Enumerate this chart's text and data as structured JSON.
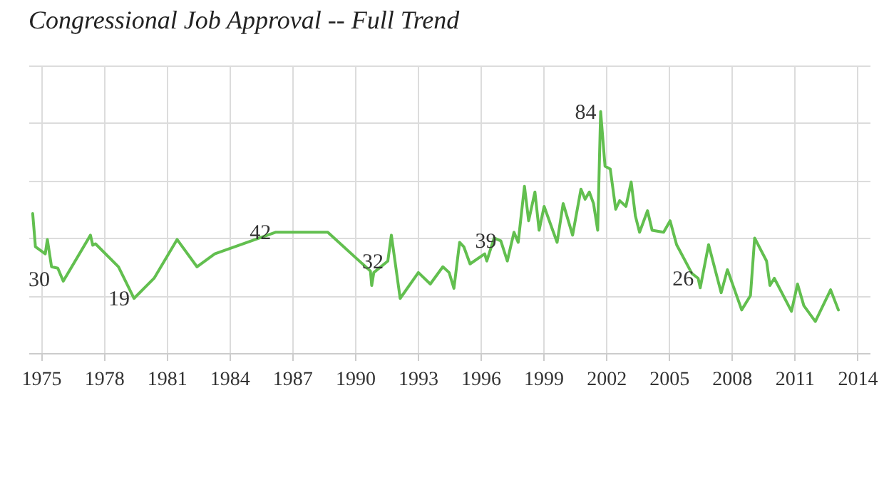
{
  "chart_data": {
    "type": "line",
    "title": "Congressional Job Approval -- Full Trend",
    "x": [
      1974.6,
      1974.73,
      1975.2,
      1975.3,
      1975.5,
      1975.8,
      1976.06,
      1977.36,
      1977.47,
      1977.6,
      1978.7,
      1979.44,
      1980.4,
      1981.5,
      1982.45,
      1983.3,
      1986.2,
      1988.7,
      1990.74,
      1990.8,
      1990.9,
      1991.57,
      1991.74,
      1992.16,
      1993.03,
      1993.6,
      1994.2,
      1994.5,
      1994.73,
      1995.0,
      1995.2,
      1995.5,
      1996.2,
      1996.3,
      1996.65,
      1996.97,
      1997.28,
      1997.6,
      1997.8,
      1998.1,
      1998.3,
      1998.6,
      1998.8,
      1999.04,
      1999.45,
      1999.66,
      1999.95,
      2000.4,
      2000.8,
      2001.0,
      2001.2,
      2001.4,
      2001.6,
      2001.74,
      2001.95,
      2002.2,
      2002.46,
      2002.65,
      2002.95,
      2003.2,
      2003.4,
      2003.6,
      2003.98,
      2004.2,
      2004.75,
      2005.06,
      2005.37,
      2006.1,
      2006.4,
      2006.5,
      2006.9,
      2007.5,
      2007.8,
      2008.48,
      2008.9,
      2009.1,
      2009.67,
      2009.83,
      2010.04,
      2010.86,
      2011.15,
      2011.45,
      2012.0,
      2012.73,
      2013.1
    ],
    "series": [
      {
        "color": "#62bf4f",
        "value_labels": [
          null,
          null,
          null,
          null,
          null,
          null,
          null,
          null,
          null,
          null,
          null,
          "19",
          null,
          null,
          null,
          null,
          "42",
          null,
          null,
          null,
          null,
          "32",
          null,
          null,
          null,
          null,
          null,
          null,
          null,
          null,
          null,
          null,
          null,
          null,
          null,
          "39",
          null,
          null,
          null,
          null,
          null,
          null,
          null,
          null,
          null,
          null,
          null,
          null,
          null,
          null,
          null,
          null,
          null,
          "84",
          null,
          null,
          null,
          null,
          null,
          null,
          null,
          null,
          null,
          null,
          null,
          null,
          null,
          null,
          "26",
          null,
          null,
          null,
          null,
          null,
          null,
          null,
          null,
          null,
          null,
          null,
          null,
          null,
          null,
          null,
          null
        ],
        "values": [
          48.5,
          37,
          34.5,
          39.5,
          30,
          29.5,
          25,
          41,
          37.5,
          38,
          30,
          19,
          26,
          39.5,
          30,
          34.5,
          42,
          42,
          28.5,
          23.5,
          28,
          32,
          41,
          19,
          28,
          24,
          30,
          28,
          22.5,
          38.5,
          37,
          31,
          34.5,
          32,
          40,
          39,
          32,
          42,
          38.5,
          58,
          46,
          56,
          42.7,
          51,
          42.7,
          38.5,
          52,
          41,
          57,
          53.5,
          56,
          52,
          42.7,
          84,
          65,
          64,
          50,
          53,
          51,
          59.5,
          47.7,
          42,
          49.5,
          42.7,
          42,
          46,
          37.7,
          27.7,
          26,
          22.7,
          37.7,
          21,
          29,
          15,
          20,
          40,
          32,
          23.5,
          26,
          14.5,
          24,
          16.5,
          11,
          22,
          15
        ]
      }
    ],
    "xlim": [
      1974.4,
      2014.6
    ],
    "xticks": [
      1975,
      1978,
      1981,
      1984,
      1987,
      1990,
      1993,
      1996,
      1999,
      2002,
      2005,
      2008,
      2011,
      2014
    ],
    "ylim": [
      0,
      100
    ],
    "yticks": [
      0,
      20,
      40,
      60,
      80,
      100
    ],
    "tick_labels": "x",
    "grid": true,
    "marker": "none",
    "annotations": [
      "30"
    ]
  }
}
